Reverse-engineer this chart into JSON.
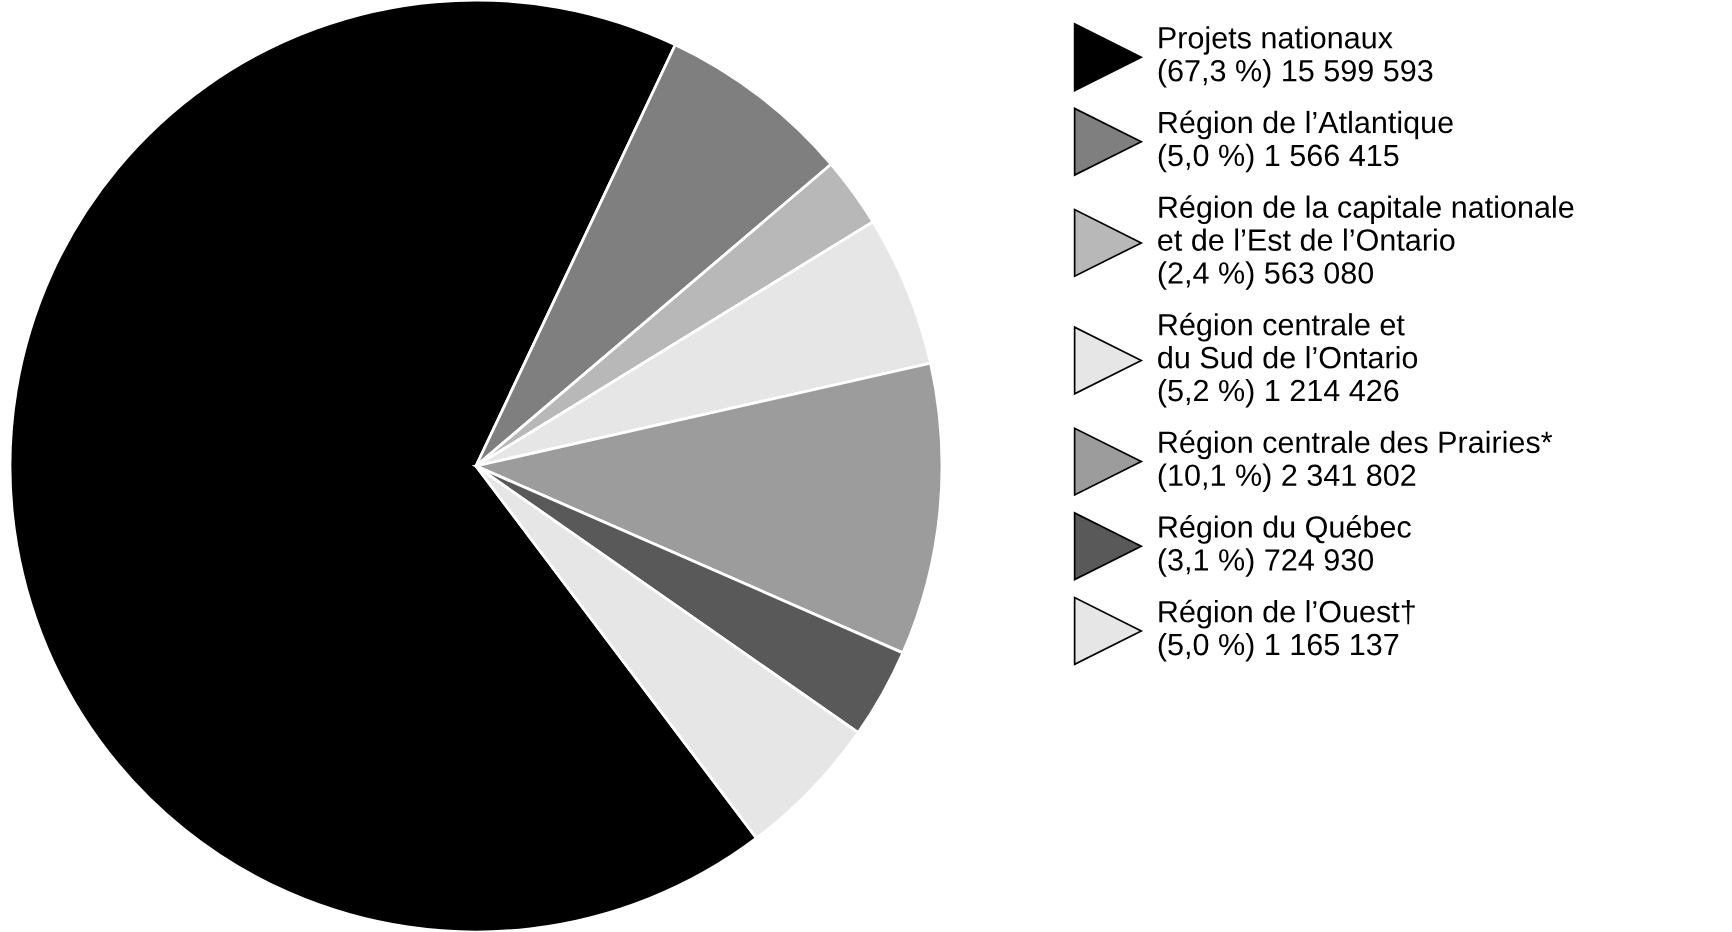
{
  "chart_data": {
    "type": "pie",
    "categories": [
      "Projets nationaux",
      "Région de l’Atlantique",
      "Région de la capitale nationale\net de l’Est de l’Ontario",
      "Région centrale et\ndu Sud de l’Ontario",
      "Région centrale des Prairies*",
      "Région du Québec",
      "Région de l’Ouest†"
    ],
    "values": [
      15599593,
      1566415,
      563080,
      1214426,
      2341802,
      724930,
      1165137
    ],
    "value_labels": [
      "(67,3 %) 15 599 593",
      "(5,0 %) 1 566 415",
      "(2,4 %) 563 080",
      "(5,2 %) 1 214 426",
      "(10,1 %) 2 341 802",
      "(3,1 %) 724 930",
      "(5,0 %) 1 165 137"
    ],
    "colors": [
      "#000000",
      "#7f7f7f",
      "#b8b8b8",
      "#e6e6e6",
      "#9c9c9c",
      "#595959",
      "#e6e6e6"
    ],
    "legend": "right"
  }
}
